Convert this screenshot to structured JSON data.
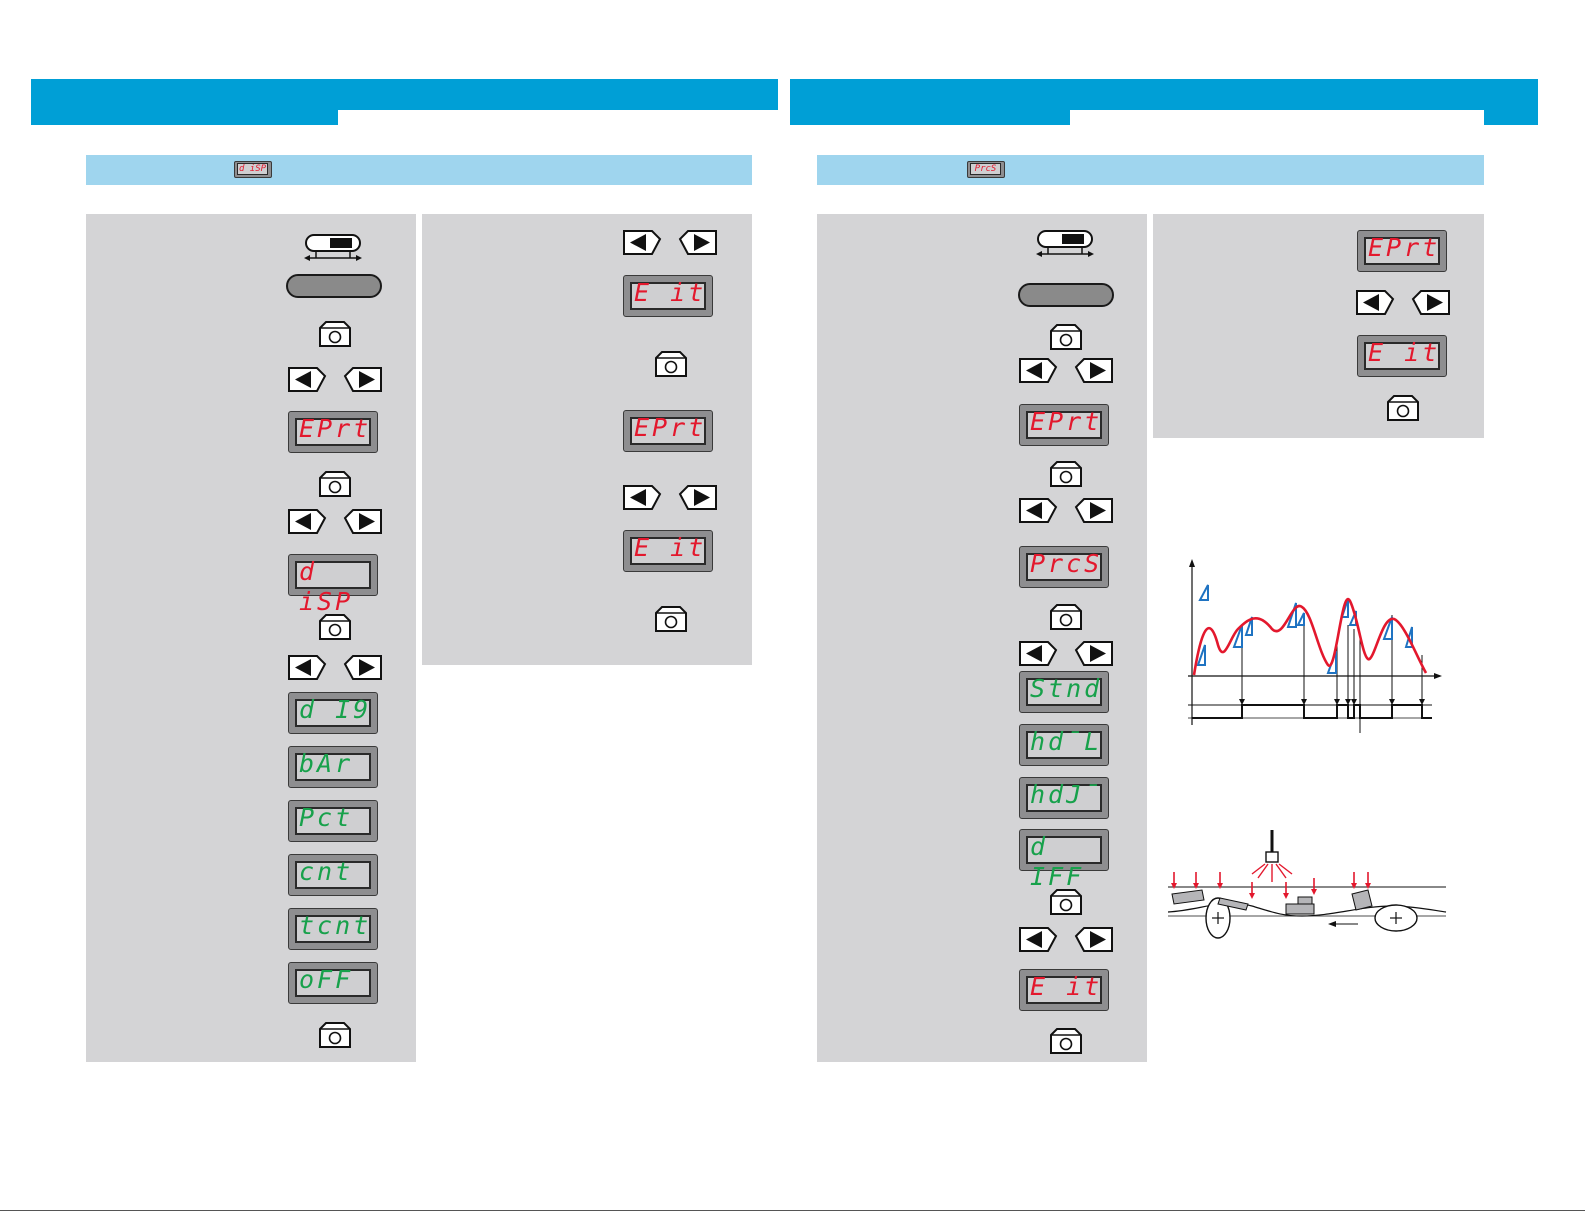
{
  "left_page": {
    "header_badge": "d iSP",
    "column_a": {
      "displays": [
        {
          "text": "EPrt",
          "color": "red"
        },
        {
          "text": "d iSP",
          "color": "red"
        },
        {
          "text": "d I9",
          "color": "green"
        },
        {
          "text": "bAr",
          "color": "green"
        },
        {
          "text": "Pct",
          "color": "green"
        },
        {
          "text": "cnt",
          "color": "green"
        },
        {
          "text": "tcnt",
          "color": "green"
        },
        {
          "text": "oFF",
          "color": "green"
        }
      ]
    },
    "column_b": {
      "displays": [
        {
          "text": "E it",
          "color": "red"
        },
        {
          "text": "EPrt",
          "color": "red"
        },
        {
          "text": "E it",
          "color": "red"
        }
      ]
    }
  },
  "right_page": {
    "header_badge": "PrcS",
    "column_a": {
      "displays": [
        {
          "text": "EPrt",
          "color": "red"
        },
        {
          "text": "PrcS",
          "color": "red"
        },
        {
          "text": "Stnd",
          "color": "green"
        },
        {
          "text": "hd¯L",
          "color": "green"
        },
        {
          "text": "hdJ¯",
          "color": "green"
        },
        {
          "text": "d IFF",
          "color": "green"
        },
        {
          "text": "E it",
          "color": "red"
        }
      ]
    },
    "column_b": {
      "displays": [
        {
          "text": "EPrt",
          "color": "red"
        },
        {
          "text": "E it",
          "color": "red"
        }
      ]
    }
  },
  "colors": {
    "header_band": "#009fd6",
    "subheader": "#9fd5ee",
    "panel": "#d4d4d6",
    "display_red": "#e3182d",
    "display_green": "#17a14b",
    "wave_red": "#e3182d",
    "marker_blue": "#1f73c2"
  },
  "icons": [
    "slide-switch-icon",
    "enter-key-icon",
    "left-arrow-key-icon",
    "right-arrow-key-icon"
  ]
}
